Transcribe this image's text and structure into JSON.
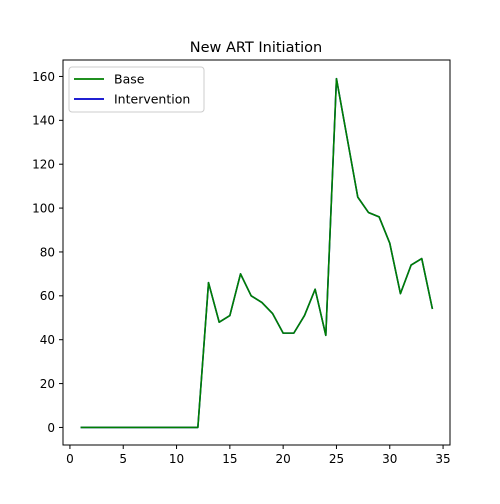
{
  "chart_data": {
    "type": "line",
    "title": "New ART Initiation",
    "xlabel": "",
    "ylabel": "",
    "xlim": [
      -0.65,
      35.65
    ],
    "ylim": [
      -8,
      167.5
    ],
    "xticks": [
      0,
      5,
      10,
      15,
      20,
      25,
      30,
      35
    ],
    "yticks": [
      0,
      20,
      40,
      60,
      80,
      100,
      120,
      140,
      160
    ],
    "grid": false,
    "legend_position": "top-left",
    "x": [
      1,
      2,
      3,
      4,
      5,
      6,
      7,
      8,
      9,
      10,
      11,
      12,
      13,
      14,
      15,
      16,
      17,
      18,
      19,
      20,
      21,
      22,
      23,
      24,
      25,
      26,
      27,
      28,
      29,
      30,
      31,
      32,
      33,
      34
    ],
    "series": [
      {
        "name": "Base",
        "color": "#008000",
        "values": [
          0,
          0,
          0,
          0,
          0,
          0,
          0,
          0,
          0,
          0,
          0,
          0,
          66,
          48,
          51,
          70,
          60,
          57,
          52,
          43,
          43,
          51,
          63,
          42,
          159,
          132,
          105,
          98,
          96,
          84,
          61,
          74,
          77,
          54
        ]
      },
      {
        "name": "Intervention",
        "color": "#0000cc",
        "values": [
          0,
          0,
          0,
          0,
          0,
          0,
          0,
          0,
          0,
          0,
          0,
          0,
          66,
          48,
          51,
          70,
          60,
          57,
          52,
          43,
          43,
          51,
          63,
          42,
          159,
          132,
          105,
          98,
          96,
          84,
          61,
          74,
          77,
          54
        ]
      }
    ]
  }
}
